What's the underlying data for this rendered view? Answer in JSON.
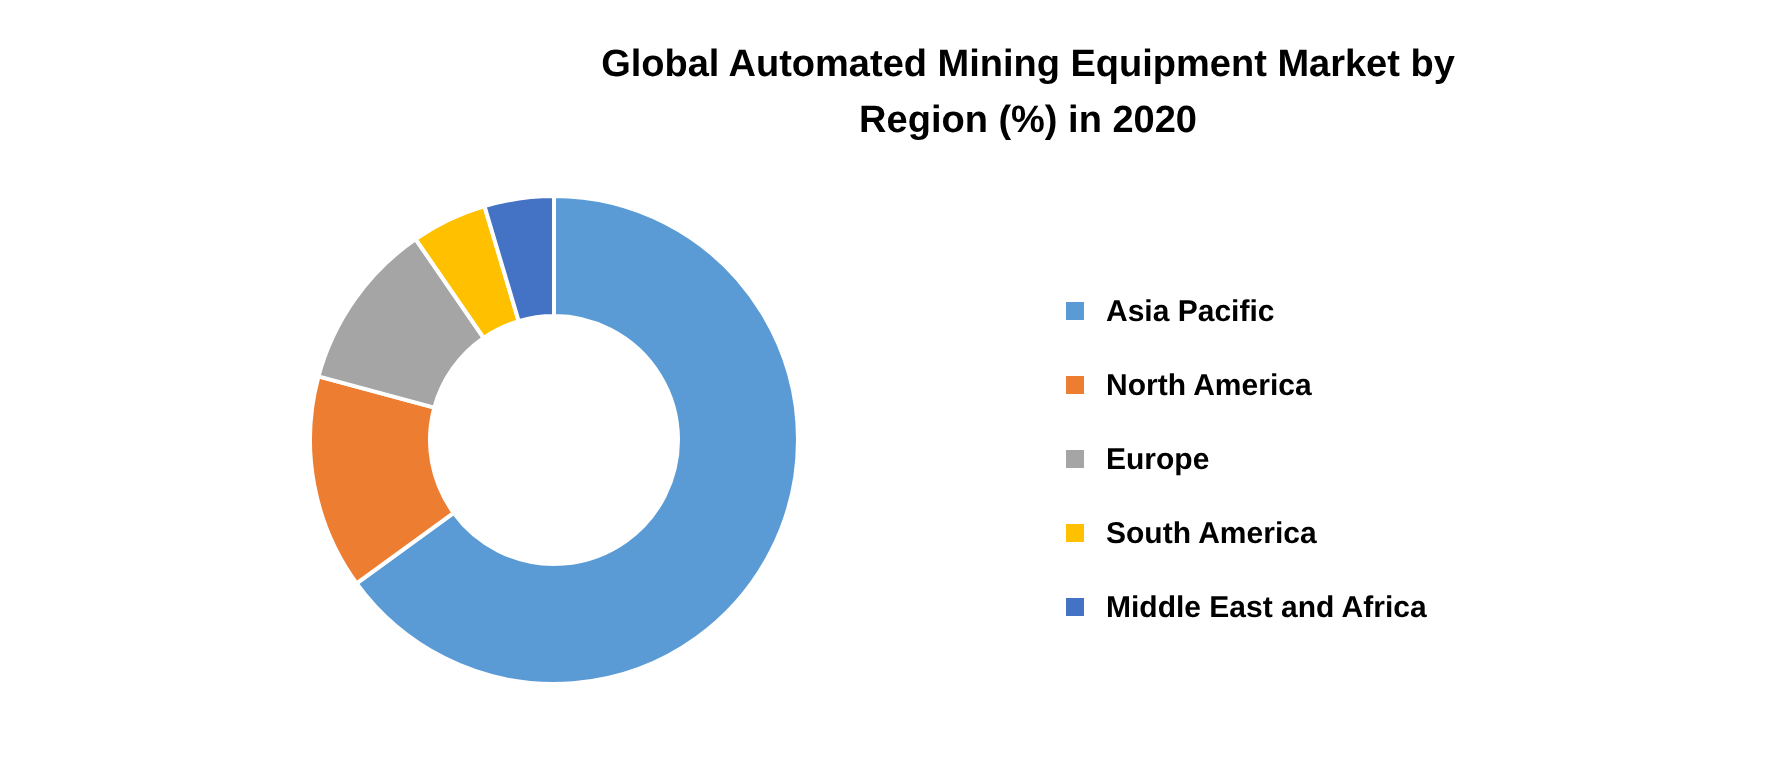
{
  "chart_data": {
    "type": "donut",
    "title": "Global Automated Mining Equipment Market by Region (%) in 2020",
    "categories": [
      "Asia Pacific",
      "North America",
      "Europe",
      "South America",
      "Middle East and Africa"
    ],
    "values": [
      65,
      14.2,
      11.2,
      5,
      4.6
    ],
    "colors": [
      "#5b9bd5",
      "#ed7d31",
      "#a5a5a5",
      "#ffc000",
      "#4472c4"
    ],
    "legend": "right"
  }
}
